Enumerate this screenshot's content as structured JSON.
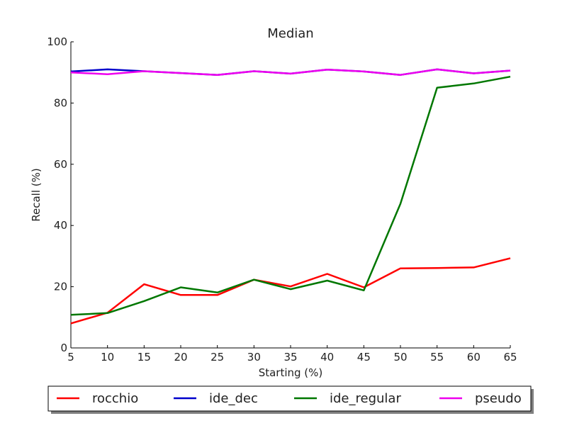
{
  "chart_data": {
    "type": "line",
    "title": "Median",
    "xlabel": "Starting (%)",
    "ylabel": "Recall (%)",
    "xlim": [
      5,
      65
    ],
    "ylim": [
      0,
      100
    ],
    "x_ticks": [
      5,
      10,
      15,
      20,
      25,
      30,
      35,
      40,
      45,
      50,
      55,
      60,
      65
    ],
    "y_ticks": [
      0,
      20,
      40,
      60,
      80,
      100
    ],
    "grid": false,
    "legend_position": "bottom",
    "x": [
      5,
      10,
      15,
      20,
      25,
      30,
      35,
      40,
      45,
      50,
      55,
      60,
      65
    ],
    "series": [
      {
        "name": "rocchio",
        "color": "#ff0000",
        "values": [
          8.0,
          11.5,
          20.8,
          17.3,
          17.3,
          22.3,
          20.1,
          24.2,
          19.8,
          26.0,
          26.1,
          26.3,
          29.3
        ]
      },
      {
        "name": "ide_dec",
        "color": "#0000cc",
        "values": [
          90.3,
          91.0,
          90.4,
          89.8,
          89.2,
          90.4,
          89.6,
          90.9,
          90.3,
          89.2,
          91.0,
          89.7,
          90.6
        ]
      },
      {
        "name": "ide_regular",
        "color": "#007700",
        "values": [
          10.8,
          11.4,
          15.3,
          19.8,
          18.1,
          22.3,
          19.2,
          22.0,
          18.8,
          47.1,
          85.0,
          86.4,
          88.6
        ]
      },
      {
        "name": "pseudo",
        "color": "#ee00ee",
        "values": [
          90.0,
          89.4,
          90.4,
          89.8,
          89.2,
          90.4,
          89.6,
          90.9,
          90.3,
          89.2,
          91.0,
          89.7,
          90.6
        ]
      }
    ]
  }
}
